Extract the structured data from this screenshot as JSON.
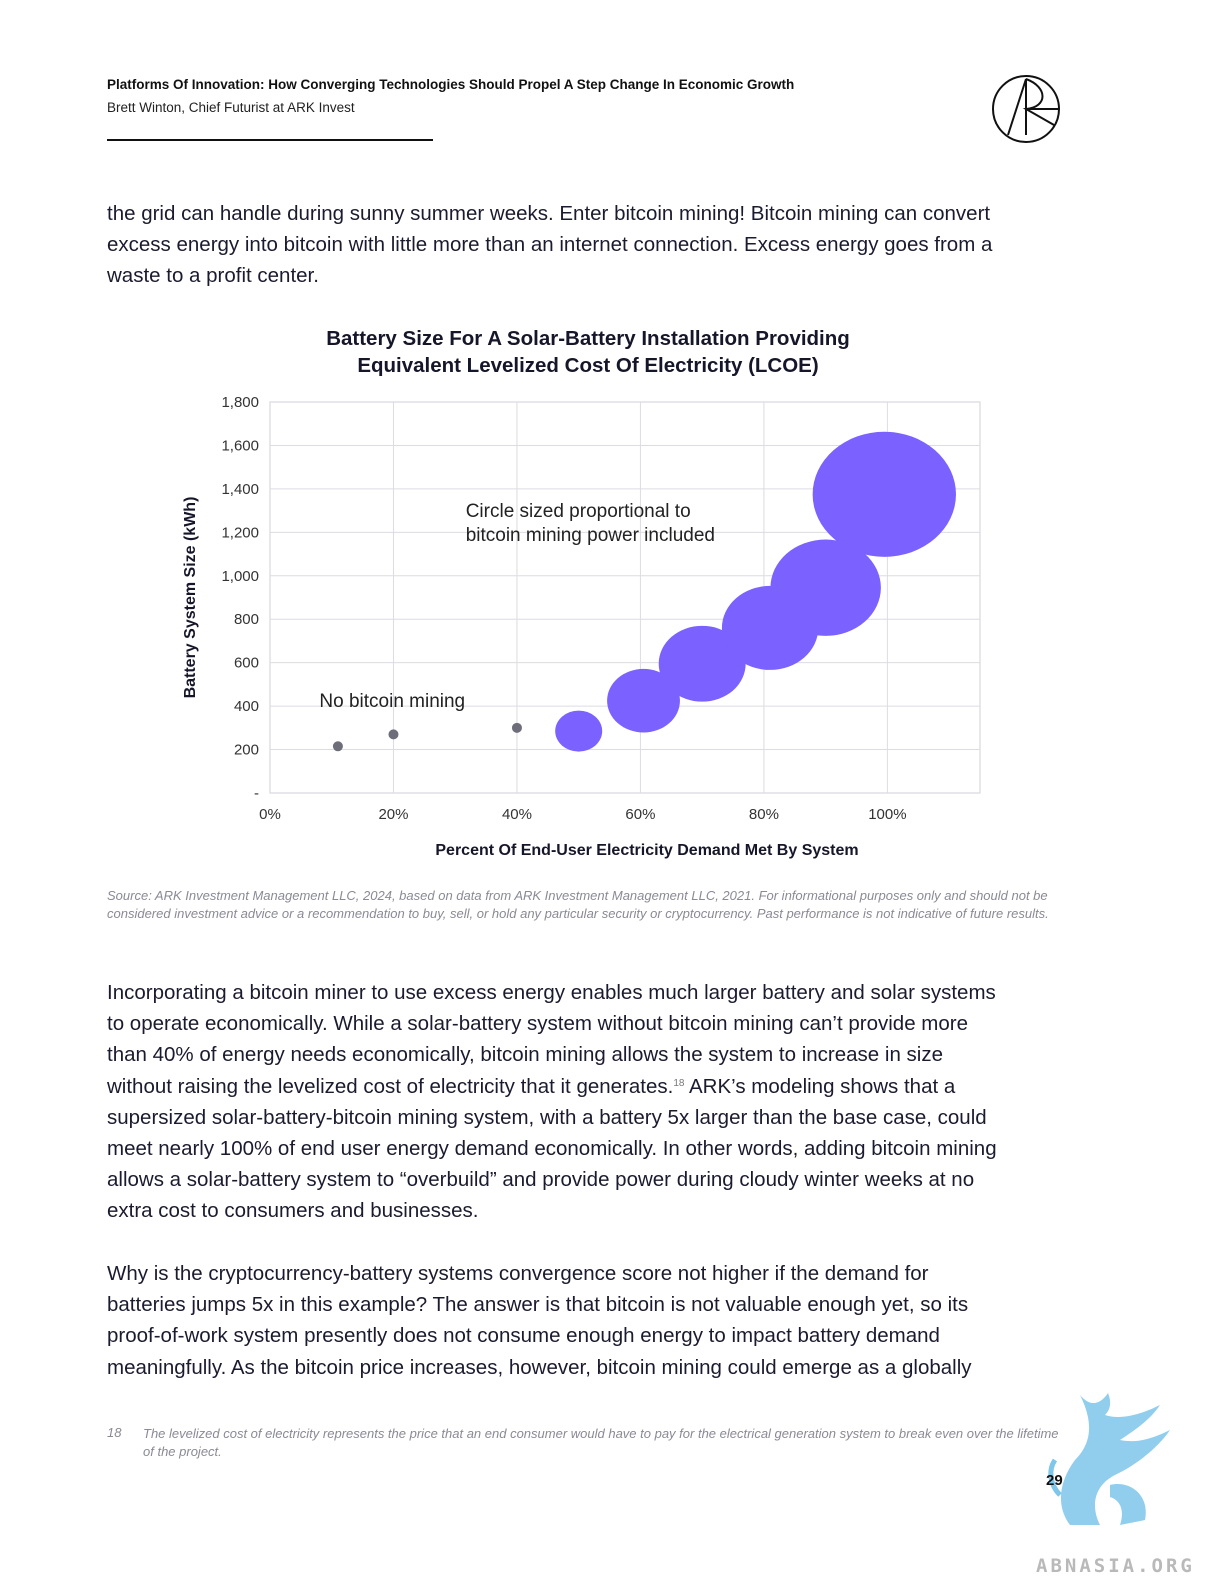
{
  "header": {
    "title": "Platforms Of Innovation: How Converging Technologies Should Propel A Step Change In Economic Growth",
    "author": "Brett Winton, Chief Futurist at ARK Invest"
  },
  "logo_icon": "ark-logo-icon",
  "intro_paragraph": [
    "the grid can handle during sunny summer weeks. Enter bitcoin mining! Bitcoin mining can convert",
    "excess energy into bitcoin with little more than an internet connection. Excess energy goes from a",
    "waste to a profit center."
  ],
  "chart": {
    "title_lines": [
      "Battery Size For A Solar-Battery Installation Providing",
      "Equivalent Levelized Cost Of Electricity (LCOE)"
    ]
  },
  "chart_data": {
    "type": "scatter",
    "title": "Battery Size For A Solar-Battery Installation Providing Equivalent Levelized Cost Of Electricity (LCOE)",
    "xlabel": "Percent Of End-User Electricity Demand Met By System",
    "ylabel": "Battery System Size (kWh)",
    "xlim": [
      0,
      1.15
    ],
    "ylim": [
      0,
      1800
    ],
    "x_ticks": [
      0,
      0.2,
      0.4,
      0.6,
      0.8,
      1.0
    ],
    "x_tick_labels": [
      "0%",
      "20%",
      "40%",
      "60%",
      "80%",
      "100%"
    ],
    "y_ticks": [
      0,
      200,
      400,
      600,
      800,
      1000,
      1200,
      1400,
      1600,
      1800
    ],
    "y_tick_labels": [
      "-",
      "200",
      "400",
      "600",
      "800",
      "1,000",
      "1,200",
      "1,400",
      "1,600",
      "1,800"
    ],
    "grid": true,
    "series": [
      {
        "color": "#6e6e7a",
        "points": [
          {
            "x": 0.11,
            "y": 215
          },
          {
            "x": 0.2,
            "y": 270
          },
          {
            "x": 0.4,
            "y": 300
          }
        ]
      },
      {
        "color": "#7b61ff",
        "points": [
          {
            "x": 0.5,
            "y": 285,
            "size": 1.0
          },
          {
            "x": 0.605,
            "y": 425,
            "size": 1.55
          },
          {
            "x": 0.7,
            "y": 595,
            "size": 1.85
          },
          {
            "x": 0.81,
            "y": 760,
            "size": 2.05
          },
          {
            "x": 0.9,
            "y": 945,
            "size": 2.35
          },
          {
            "x": 0.995,
            "y": 1375,
            "size": 3.05
          }
        ]
      }
    ],
    "annotations": [
      {
        "text_lines": [
          "Circle sized proportional to",
          "bitcoin mining power included"
        ],
        "x": 0.317,
        "y": 1270
      },
      {
        "text_lines": [
          "No bitcoin mining"
        ],
        "x": 0.08,
        "y": 395
      }
    ]
  },
  "source_note": "Source: ARK Investment Management LLC, 2024, based on data from ARK Investment Management LLC, 2021. For informational purposes only and should not be considered investment advice or a recommendation to buy, sell, or hold any particular security or cryptocurrency. Past performance is not indicative of future results.",
  "paragraph_2": {
    "lines_before": [
      "Incorporating a bitcoin miner to use excess energy enables much larger battery and solar systems",
      "to operate economically. While a solar-battery system without bitcoin mining can’t provide more",
      "than 40% of energy needs economically, bitcoin mining allows the system to increase in size"
    ],
    "line4_start": "without raising the levelized cost of electricity that it generates.",
    "footnote_ref": "18",
    "line4_end": " ARK’s modeling shows that a",
    "lines_after": [
      "supersized solar-battery-bitcoin mining system, with a battery 5x larger than the base case, could",
      "meet nearly 100% of end user energy demand economically. In other words, adding bitcoin mining",
      "allows a solar-battery system to “overbuild” and provide power during cloudy winter weeks at no",
      "extra cost to consumers and businesses."
    ]
  },
  "paragraph_3": [
    "Why is the cryptocurrency-battery systems convergence score not higher if the demand for",
    "batteries jumps 5x in this example? The answer is that bitcoin is not valuable enough yet, so its",
    "proof-of-work system presently does not consume enough energy to impact battery demand",
    "meaningfully. As the bitcoin price increases, however, bitcoin mining could emerge as a globally"
  ],
  "footnote": {
    "number": "18",
    "text": "The levelized cost of electricity represents the price that an end consumer would have to pay for the electrical generation system to break even over the lifetime of the project."
  },
  "page_number": "29",
  "watermark": {
    "text": "ABNASIA.ORG",
    "icon": "griffin-watermark-icon"
  }
}
